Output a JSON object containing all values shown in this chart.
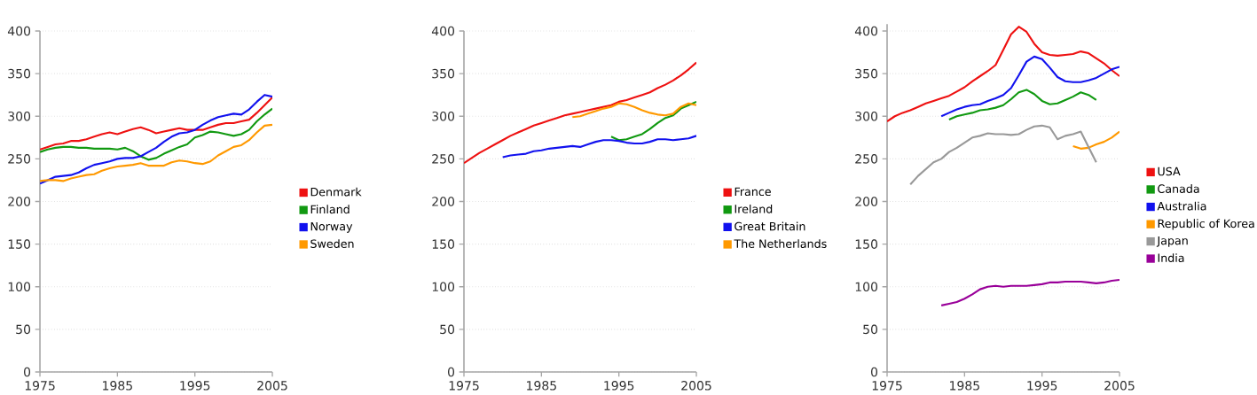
{
  "chart_data": [
    {
      "type": "line",
      "xlim": [
        1975,
        2005
      ],
      "xticks": [
        1975,
        1985,
        1995,
        2005
      ],
      "ylim": [
        0,
        400
      ],
      "yticks": [
        0,
        50,
        100,
        150,
        200,
        250,
        300,
        350,
        400
      ],
      "grid": "y",
      "legend": "right",
      "series": [
        {
          "name": "Denmark",
          "color": "#ee1111",
          "x": [
            1975,
            1976,
            1977,
            1978,
            1979,
            1980,
            1981,
            1982,
            1983,
            1984,
            1985,
            1986,
            1987,
            1988,
            1989,
            1990,
            1991,
            1992,
            1993,
            1994,
            1995,
            1996,
            1997,
            1998,
            1999,
            2000,
            2001,
            2002,
            2003,
            2004,
            2005
          ],
          "values": [
            261,
            264,
            267,
            268,
            271,
            271,
            273,
            276,
            279,
            281,
            279,
            282,
            285,
            287,
            284,
            280,
            282,
            284,
            286,
            284,
            284,
            284,
            287,
            290,
            292,
            292,
            294,
            296,
            304,
            313,
            322
          ]
        },
        {
          "name": "Finland",
          "color": "#119911",
          "x": [
            1975,
            1976,
            1977,
            1978,
            1979,
            1980,
            1981,
            1982,
            1983,
            1984,
            1985,
            1986,
            1987,
            1988,
            1989,
            1990,
            1991,
            1992,
            1993,
            1994,
            1995,
            1996,
            1997,
            1998,
            1999,
            2000,
            2001,
            2002,
            2003,
            2004,
            2005
          ],
          "values": [
            258,
            261,
            263,
            264,
            264,
            263,
            263,
            262,
            262,
            262,
            261,
            263,
            259,
            253,
            249,
            251,
            256,
            260,
            264,
            267,
            275,
            278,
            282,
            281,
            279,
            277,
            279,
            284,
            294,
            302,
            309
          ]
        },
        {
          "name": "Norway",
          "color": "#1111ee",
          "x": [
            1975,
            1976,
            1977,
            1978,
            1979,
            1980,
            1981,
            1982,
            1983,
            1984,
            1985,
            1986,
            1987,
            1988,
            1989,
            1990,
            1991,
            1992,
            1993,
            1994,
            1995,
            1996,
            1997,
            1998,
            1999,
            2000,
            2001,
            2002,
            2003,
            2004,
            2005
          ],
          "values": [
            221,
            225,
            229,
            230,
            231,
            234,
            239,
            243,
            245,
            247,
            250,
            251,
            251,
            253,
            258,
            263,
            270,
            276,
            280,
            281,
            284,
            290,
            295,
            299,
            301,
            303,
            302,
            308,
            317,
            325,
            323
          ]
        },
        {
          "name": "Sweden",
          "color": "#ff9900",
          "x": [
            1975,
            1976,
            1977,
            1978,
            1979,
            1980,
            1981,
            1982,
            1983,
            1984,
            1985,
            1986,
            1987,
            1988,
            1989,
            1990,
            1991,
            1992,
            1993,
            1994,
            1995,
            1996,
            1997,
            1998,
            1999,
            2000,
            2001,
            2002,
            2003,
            2004,
            2005
          ],
          "values": [
            224,
            225,
            225,
            224,
            227,
            229,
            231,
            232,
            236,
            239,
            241,
            242,
            243,
            245,
            242,
            242,
            242,
            246,
            248,
            247,
            245,
            244,
            247,
            254,
            259,
            264,
            266,
            272,
            281,
            289,
            290
          ]
        }
      ]
    },
    {
      "type": "line",
      "xlim": [
        1975,
        2005
      ],
      "xticks": [
        1975,
        1985,
        1995,
        2005
      ],
      "ylim": [
        0,
        400
      ],
      "yticks": [
        0,
        50,
        100,
        150,
        200,
        250,
        300,
        350,
        400
      ],
      "grid": "y",
      "legend": "right",
      "series": [
        {
          "name": "France",
          "color": "#ee1111",
          "x": [
            1975,
            1976,
            1977,
            1978,
            1979,
            1980,
            1981,
            1982,
            1983,
            1984,
            1985,
            1986,
            1987,
            1988,
            1989,
            1990,
            1991,
            1992,
            1993,
            1994,
            1995,
            1996,
            1997,
            1998,
            1999,
            2000,
            2001,
            2002,
            2003,
            2004,
            2005
          ],
          "values": [
            245,
            251,
            257,
            262,
            267,
            272,
            277,
            281,
            285,
            289,
            292,
            295,
            298,
            301,
            303,
            305,
            307,
            309,
            311,
            313,
            317,
            319,
            322,
            325,
            328,
            333,
            337,
            342,
            348,
            355,
            363
          ]
        },
        {
          "name": "Ireland",
          "color": "#119911",
          "x": [
            1994,
            1995,
            1996,
            1997,
            1998,
            1999,
            2000,
            2001,
            2002,
            2003,
            2004,
            2005
          ],
          "values": [
            276,
            272,
            273,
            276,
            279,
            285,
            292,
            298,
            301,
            309,
            313,
            317
          ]
        },
        {
          "name": "Great Britain",
          "color": "#1111ee",
          "x": [
            1980,
            1981,
            1982,
            1983,
            1984,
            1985,
            1986,
            1987,
            1988,
            1989,
            1990,
            1991,
            1992,
            1993,
            1994,
            1995,
            1996,
            1997,
            1998,
            1999,
            2000,
            2001,
            2002,
            2003,
            2004,
            2005
          ],
          "values": [
            252,
            254,
            255,
            256,
            259,
            260,
            262,
            263,
            264,
            265,
            264,
            267,
            270,
            272,
            272,
            271,
            269,
            268,
            268,
            270,
            273,
            273,
            272,
            273,
            274,
            277
          ]
        },
        {
          "name": "The Netherlands",
          "color": "#ff9900",
          "x": [
            1989,
            1990,
            1991,
            1992,
            1993,
            1994,
            1995,
            1996,
            1997,
            1998,
            1999,
            2000,
            2001,
            2002,
            2003,
            2004,
            2005
          ],
          "values": [
            299,
            300,
            303,
            306,
            309,
            311,
            315,
            314,
            311,
            307,
            304,
            302,
            301,
            303,
            311,
            315,
            313
          ]
        }
      ]
    },
    {
      "type": "line",
      "xlim": [
        1975,
        2005
      ],
      "xticks": [
        1975,
        1985,
        1995,
        2005
      ],
      "ylim": [
        0,
        408
      ],
      "yticks": [
        0,
        50,
        100,
        150,
        200,
        250,
        300,
        350,
        400
      ],
      "grid": "y",
      "legend": "right",
      "series": [
        {
          "name": "USA",
          "color": "#ee1111",
          "x": [
            1975,
            1976,
            1977,
            1978,
            1979,
            1980,
            1981,
            1982,
            1983,
            1984,
            1985,
            1986,
            1987,
            1988,
            1989,
            1990,
            1991,
            1992,
            1993,
            1994,
            1995,
            1996,
            1997,
            1998,
            1999,
            2000,
            2001,
            2002,
            2003,
            2004,
            2005
          ],
          "values": [
            294,
            300,
            304,
            307,
            311,
            315,
            318,
            321,
            324,
            329,
            334,
            341,
            347,
            353,
            360,
            378,
            396,
            405,
            399,
            385,
            375,
            372,
            371,
            372,
            373,
            376,
            374,
            368,
            362,
            354,
            347
          ]
        },
        {
          "name": "Canada",
          "color": "#119911",
          "x": [
            1983,
            1984,
            1985,
            1986,
            1987,
            1988,
            1989,
            1990,
            1991,
            1992,
            1993,
            1994,
            1995,
            1996,
            1997,
            1998,
            1999,
            2000,
            2001,
            2002
          ],
          "values": [
            296,
            300,
            302,
            304,
            307,
            308,
            310,
            313,
            320,
            328,
            331,
            326,
            318,
            314,
            315,
            319,
            323,
            328,
            325,
            319
          ]
        },
        {
          "name": "Australia",
          "color": "#1111ee",
          "x": [
            1982,
            1983,
            1984,
            1985,
            1986,
            1987,
            1988,
            1989,
            1990,
            1991,
            1992,
            1993,
            1994,
            1995,
            1996,
            1997,
            1998,
            1999,
            2000,
            2001,
            2002,
            2003,
            2004,
            2005
          ],
          "values": [
            300,
            304,
            308,
            311,
            313,
            314,
            318,
            321,
            325,
            333,
            348,
            364,
            370,
            367,
            357,
            346,
            341,
            340,
            340,
            342,
            345,
            350,
            355,
            358
          ]
        },
        {
          "name": "Republic of Korea",
          "color": "#ff9900",
          "x": [
            1999,
            2000,
            2001,
            2002,
            2003,
            2004,
            2005
          ],
          "values": [
            265,
            262,
            263,
            267,
            270,
            275,
            282
          ]
        },
        {
          "name": "Japan",
          "color": "#999999",
          "x": [
            1978,
            1979,
            1980,
            1981,
            1982,
            1983,
            1984,
            1985,
            1986,
            1987,
            1988,
            1989,
            1990,
            1991,
            1992,
            1993,
            1994,
            1995,
            1996,
            1997,
            1998,
            1999,
            2000,
            2001,
            2002
          ],
          "values": [
            220,
            230,
            238,
            246,
            250,
            258,
            263,
            269,
            275,
            277,
            280,
            279,
            279,
            278,
            279,
            284,
            288,
            289,
            287,
            273,
            277,
            279,
            282,
            264,
            246
          ]
        },
        {
          "name": "India",
          "color": "#990099",
          "x": [
            1982,
            1983,
            1984,
            1985,
            1986,
            1987,
            1988,
            1989,
            1990,
            1991,
            1992,
            1993,
            1994,
            1995,
            1996,
            1997,
            1998,
            1999,
            2000,
            2001,
            2002,
            2003,
            2004,
            2005
          ],
          "values": [
            78,
            80,
            82,
            86,
            91,
            97,
            100,
            101,
            100,
            101,
            101,
            101,
            102,
            103,
            105,
            105,
            106,
            106,
            106,
            105,
            104,
            105,
            107,
            108
          ]
        }
      ]
    }
  ]
}
